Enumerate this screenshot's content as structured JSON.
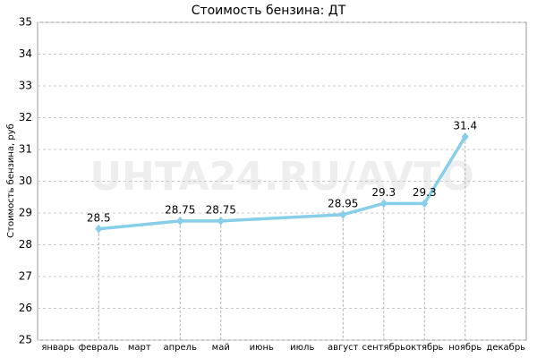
{
  "chart_data": {
    "type": "line",
    "title": "Стоимость бензина: ДТ",
    "y_label": "Стоимость бензина, руб",
    "watermark": "UHTA24.RU/AVTO",
    "categories": [
      "январь",
      "февраль",
      "март",
      "апрель",
      "май",
      "июнь",
      "июль",
      "август",
      "сентябрь",
      "октябрь",
      "ноябрь",
      "декабрь"
    ],
    "series": [
      {
        "name": "ДТ",
        "color": "#87ceeb",
        "values": [
          null,
          28.5,
          null,
          28.75,
          28.75,
          null,
          null,
          28.95,
          29.3,
          29.3,
          31.4,
          null
        ]
      }
    ],
    "ylim": [
      25,
      35
    ],
    "yticks": [
      25,
      26,
      27,
      28,
      29,
      30,
      31,
      32,
      33,
      34,
      35
    ],
    "grid": true
  }
}
